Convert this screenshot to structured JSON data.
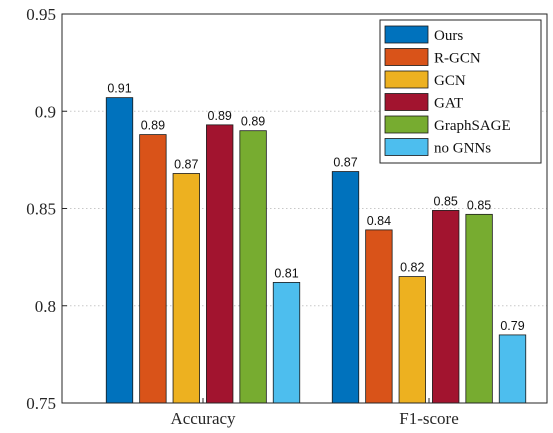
{
  "chart_data": {
    "type": "bar",
    "categories": [
      "Accuracy",
      "F1-score"
    ],
    "series": [
      {
        "name": "Ours",
        "color": "#0072BD",
        "values": [
          0.907,
          0.869
        ],
        "labels": [
          "0.91",
          "0.87"
        ]
      },
      {
        "name": "R-GCN",
        "color": "#D95319",
        "values": [
          0.888,
          0.839
        ],
        "labels": [
          "0.89",
          "0.84"
        ]
      },
      {
        "name": "GCN",
        "color": "#EDB120",
        "values": [
          0.868,
          0.815
        ],
        "labels": [
          "0.87",
          "0.82"
        ]
      },
      {
        "name": "GAT",
        "color": "#A2142F",
        "values": [
          0.893,
          0.849
        ],
        "labels": [
          "0.89",
          "0.85"
        ]
      },
      {
        "name": "GraphSAGE",
        "color": "#77AC30",
        "values": [
          0.89,
          0.847
        ],
        "labels": [
          "0.89",
          "0.85"
        ]
      },
      {
        "name": "no GNNs",
        "color": "#4DBEEE",
        "values": [
          0.812,
          0.785
        ],
        "labels": [
          "0.81",
          "0.79"
        ]
      }
    ],
    "ylim": [
      0.75,
      0.95
    ],
    "yticks": [
      0.75,
      0.8,
      0.85,
      0.9,
      0.95
    ],
    "ytick_labels": [
      "0.75",
      "0.8",
      "0.85",
      "0.9",
      "0.95"
    ],
    "grid": "horizontal-dotted",
    "legend": "top-right",
    "title": "",
    "xlabel": "",
    "ylabel": ""
  }
}
